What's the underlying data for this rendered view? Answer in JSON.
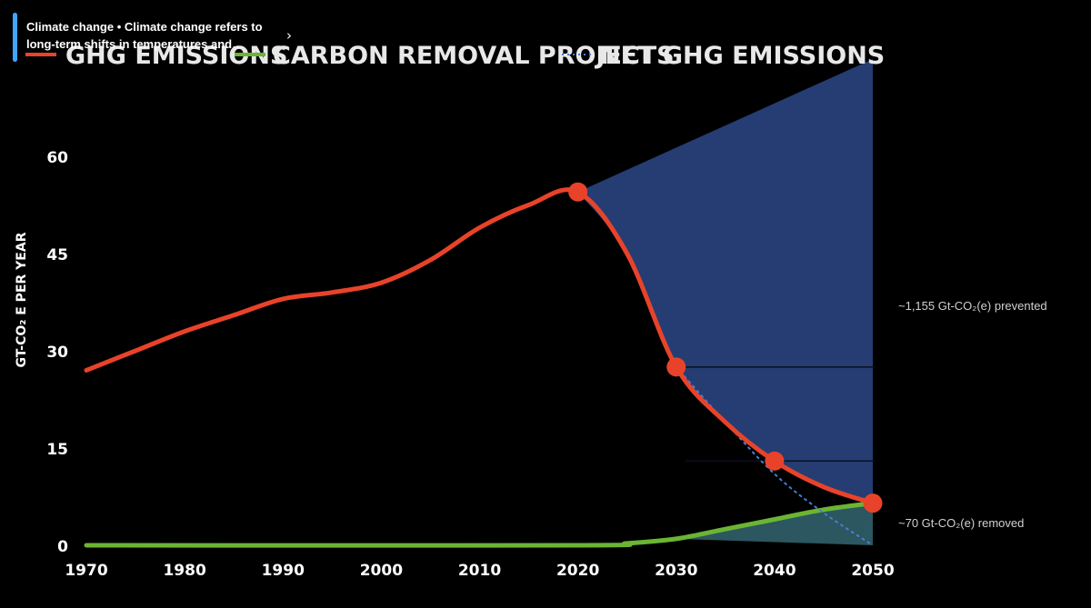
{
  "info_card": {
    "text": "Climate change • Climate change refers to long-term shifts in temperatures and…",
    "chevron": "›"
  },
  "chart_data": {
    "type": "line",
    "title": "",
    "xlabel": "",
    "ylabel": "GT-CO₂ E PER YEAR",
    "xlim": [
      1970,
      2050
    ],
    "ylim": [
      0,
      60
    ],
    "x_ticks": [
      "1970",
      "1980",
      "1990",
      "2000",
      "2010",
      "2020",
      "2030",
      "2040",
      "2050"
    ],
    "y_ticks": [
      "0",
      "15",
      "30",
      "45",
      "60"
    ],
    "legend": [
      {
        "label": "GHG EMISSIONS",
        "color": "#e8432a",
        "style": "solid"
      },
      {
        "label": "CARBON REMOVAL PROJECTS",
        "color": "#6bb534",
        "style": "solid"
      },
      {
        "label": "NET GHG EMISSIONS",
        "color": "#4a7fd0",
        "style": "dotted"
      }
    ],
    "series": [
      {
        "name": "GHG EMISSIONS",
        "color": "#e8432a",
        "points": [
          [
            1970,
            27
          ],
          [
            1975,
            30
          ],
          [
            1980,
            33
          ],
          [
            1985,
            35.5
          ],
          [
            1990,
            38
          ],
          [
            1995,
            39
          ],
          [
            2000,
            40.5
          ],
          [
            2005,
            44
          ],
          [
            2010,
            49
          ],
          [
            2015,
            52.5
          ],
          [
            2020,
            54.5
          ],
          [
            2025,
            45
          ],
          [
            2030,
            27.5
          ],
          [
            2035,
            19
          ],
          [
            2040,
            13
          ],
          [
            2045,
            9
          ],
          [
            2050,
            6.5
          ]
        ],
        "markers": [
          [
            2020,
            54.5
          ],
          [
            2030,
            27.5
          ],
          [
            2040,
            13
          ],
          [
            2050,
            6.5
          ]
        ]
      },
      {
        "name": "CARBON REMOVAL PROJECTS",
        "color": "#6bb534",
        "points": [
          [
            1970,
            0
          ],
          [
            2020,
            0
          ],
          [
            2025,
            0.3
          ],
          [
            2030,
            1
          ],
          [
            2035,
            2.5
          ],
          [
            2040,
            4
          ],
          [
            2045,
            5.5
          ],
          [
            2050,
            6.5
          ]
        ]
      },
      {
        "name": "NET GHG EMISSIONS",
        "color": "#4a7fd0",
        "points": [
          [
            2030,
            27.5
          ],
          [
            2035,
            19
          ],
          [
            2040,
            11
          ],
          [
            2045,
            5
          ],
          [
            2050,
            0
          ]
        ]
      }
    ],
    "prevented_region": {
      "color": "#253d72",
      "baseline_points": [
        [
          2020,
          54.5
        ],
        [
          2050,
          75
        ]
      ],
      "reference_lines": [
        27.5,
        13
      ]
    },
    "removed_region": {
      "color": "#2c5660"
    },
    "annotations": [
      {
        "text": "~1,155 Gt-CO₂(e) prevented",
        "x": 2050,
        "y": 37
      },
      {
        "text": "~70 Gt-CO₂(e) removed",
        "x": 2050,
        "y": 3.5
      }
    ]
  }
}
